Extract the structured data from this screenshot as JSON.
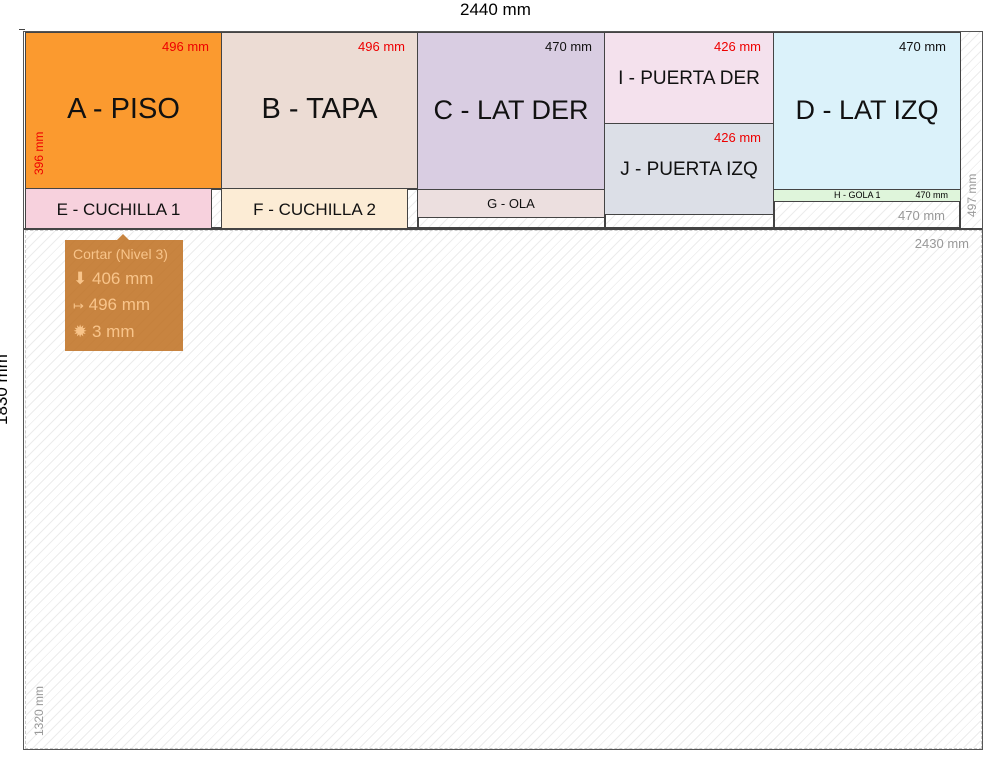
{
  "board": {
    "width_label": "2440 mm",
    "height_label": "1830 mm"
  },
  "pieces": {
    "A": {
      "name": "A - PISO",
      "width": "496 mm",
      "height": "396 mm",
      "color": "#fb9a2f"
    },
    "B": {
      "name": "B - TAPA",
      "width": "496 mm",
      "color": "#ecdcd4"
    },
    "C": {
      "name": "C - LAT DER",
      "width": "470 mm",
      "color": "#d9cde2"
    },
    "I": {
      "name": "I - PUERTA DER",
      "width": "426 mm",
      "color": "#f4e1ed"
    },
    "J": {
      "name": "J - PUERTA IZQ",
      "width": "426 mm",
      "color": "#dcdfe7"
    },
    "D": {
      "name": "D - LAT IZQ",
      "width": "470 mm",
      "color": "#dbf2fa"
    },
    "E": {
      "name": "E - CUCHILLA 1",
      "color": "#f7d1dd"
    },
    "F": {
      "name": "F - CUCHILLA 2",
      "color": "#fcecd5"
    },
    "G": {
      "name": "G - OLA",
      "color": "#ecdfdf"
    },
    "H": {
      "name": "H - GOLA 1",
      "width": "470 mm",
      "color": "#dff5db"
    }
  },
  "waste": {
    "strip_right": "497 mm",
    "under_h": "470 mm",
    "bottom_width": "2430 mm",
    "bottom_height": "1320 mm"
  },
  "tooltip": {
    "title": "Cortar (Nivel 3)",
    "height": "406 mm",
    "width": "496 mm",
    "kerf": "3 mm"
  }
}
